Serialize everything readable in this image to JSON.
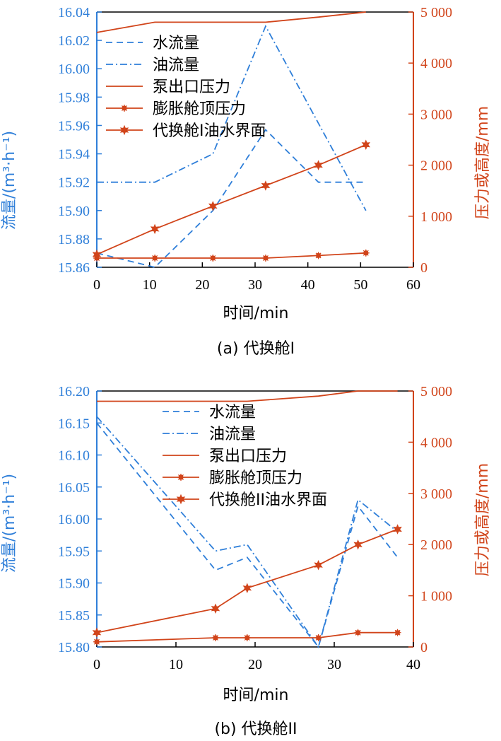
{
  "colors": {
    "blue": "#2f7fd9",
    "red": "#d1441a",
    "axis": "#000000"
  },
  "chart_data": [
    {
      "type": "line",
      "caption": "(a) 代换舱I",
      "xlabel": "时间/min",
      "ylabel_left": "流量/(m³·h⁻¹)",
      "ylabel_right": "压力或高度/mm",
      "xlim": [
        0,
        60
      ],
      "xticks": [
        "0",
        "10",
        "20",
        "30",
        "40",
        "50",
        "60"
      ],
      "ylim_left": [
        15.86,
        16.04
      ],
      "yticks_left": [
        "15.86",
        "15.88",
        "15.90",
        "15.92",
        "15.94",
        "15.96",
        "15.98",
        "16.00",
        "16.02",
        "16.04"
      ],
      "ylim_right": [
        0,
        5000
      ],
      "yticks_right": [
        "0",
        "1 000",
        "2 000",
        "3 000",
        "4 000",
        "5 000"
      ],
      "legend": {
        "position": "top-left"
      },
      "series": [
        {
          "name": "水流量",
          "axis": "left",
          "style": "dashed",
          "color": "#2f7fd9",
          "x": [
            0,
            11,
            22,
            32,
            42,
            51
          ],
          "y": [
            15.87,
            15.86,
            15.9,
            15.957,
            15.92,
            15.92
          ]
        },
        {
          "name": "油流量",
          "axis": "left",
          "style": "dashdot",
          "color": "#2f7fd9",
          "x": [
            0,
            11,
            22,
            32,
            51
          ],
          "y": [
            15.92,
            15.92,
            15.94,
            16.03,
            15.9
          ]
        },
        {
          "name": "泵出口压力",
          "axis": "right",
          "style": "solid",
          "color": "#d1441a",
          "marker": "none",
          "x": [
            0,
            11,
            22,
            32,
            42,
            51
          ],
          "y": [
            4600,
            4800,
            4800,
            4800,
            4900,
            5000
          ]
        },
        {
          "name": "膨胀舱顶压力",
          "axis": "right",
          "style": "solid",
          "color": "#d1441a",
          "marker": "dot",
          "x": [
            0,
            11,
            22,
            32,
            42,
            51
          ],
          "y": [
            180,
            180,
            180,
            180,
            230,
            280
          ]
        },
        {
          "name": "代换舱I油水界面",
          "axis": "right",
          "style": "solid",
          "color": "#d1441a",
          "marker": "star",
          "x": [
            0,
            11,
            22,
            32,
            42,
            51
          ],
          "y": [
            250,
            750,
            1200,
            1600,
            2000,
            2400
          ]
        }
      ]
    },
    {
      "type": "line",
      "caption": "(b) 代换舱II",
      "xlabel": "时间/min",
      "ylabel_left": "流量/(m³·h⁻¹)",
      "ylabel_right": "压力或高度/mm",
      "xlim": [
        0,
        40
      ],
      "xticks": [
        "0",
        "10",
        "20",
        "30",
        "40"
      ],
      "ylim_left": [
        15.8,
        16.2
      ],
      "yticks_left": [
        "15.80",
        "15.85",
        "15.90",
        "15.95",
        "16.00",
        "16.05",
        "16.10",
        "16.15",
        "16.20"
      ],
      "ylim_right": [
        0,
        5000
      ],
      "yticks_right": [
        "0",
        "1 000",
        "2 000",
        "3 000",
        "4 000",
        "5 000"
      ],
      "legend": {
        "position": "top-center"
      },
      "series": [
        {
          "name": "水流量",
          "axis": "left",
          "style": "dashed",
          "color": "#2f7fd9",
          "x": [
            0,
            15,
            19,
            28,
            33,
            38
          ],
          "y": [
            16.15,
            15.92,
            15.94,
            15.8,
            16.02,
            15.94
          ]
        },
        {
          "name": "油流量",
          "axis": "left",
          "style": "dashdot",
          "color": "#2f7fd9",
          "x": [
            0,
            15,
            19,
            28,
            33,
            38
          ],
          "y": [
            16.16,
            15.95,
            15.96,
            15.8,
            16.03,
            15.98
          ]
        },
        {
          "name": "泵出口压力",
          "axis": "right",
          "style": "solid",
          "color": "#d1441a",
          "marker": "none",
          "x": [
            0,
            15,
            19,
            28,
            33,
            38
          ],
          "y": [
            4800,
            4800,
            4800,
            4900,
            5000,
            5000
          ]
        },
        {
          "name": "膨胀舱顶压力",
          "axis": "right",
          "style": "solid",
          "color": "#d1441a",
          "marker": "dot",
          "x": [
            0,
            15,
            19,
            28,
            33,
            38
          ],
          "y": [
            100,
            180,
            180,
            180,
            280,
            280
          ]
        },
        {
          "name": "代换舱II油水界面",
          "axis": "right",
          "style": "solid",
          "color": "#d1441a",
          "marker": "star",
          "x": [
            0,
            15,
            19,
            28,
            33,
            38
          ],
          "y": [
            280,
            750,
            1150,
            1600,
            2000,
            2300
          ]
        }
      ]
    }
  ]
}
